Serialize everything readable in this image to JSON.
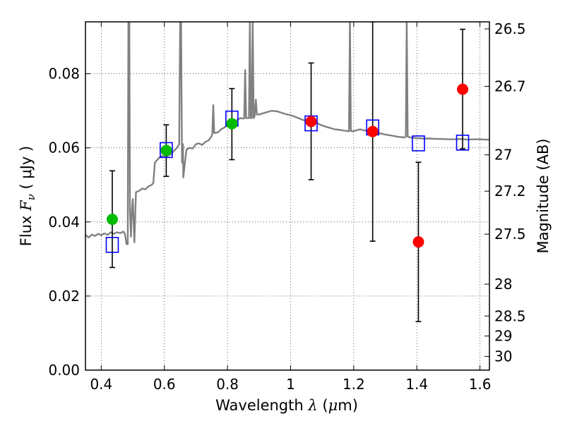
{
  "chart_data": {
    "type": "scatter",
    "title": "",
    "xlabel": {
      "prefix": "Wavelength",
      "symbol": "λ",
      "unit_open": "(",
      "unit_mu": "μ",
      "unit_rest": "m)"
    },
    "ylabel": {
      "prefix": "Flux",
      "symbol": "F",
      "symbol_sub": "ν",
      "unit": "(  μJy )"
    },
    "y2label": "Magnitude (AB)",
    "xlim": [
      0.35,
      1.63
    ],
    "ylim": [
      0.0,
      0.094
    ],
    "grid": true,
    "x_ticks": [
      {
        "value": 0.4,
        "label": "0.4"
      },
      {
        "value": 0.6,
        "label": "0.6"
      },
      {
        "value": 0.8,
        "label": "0.8"
      },
      {
        "value": 1.0,
        "label": "1"
      },
      {
        "value": 1.2,
        "label": "1.2"
      },
      {
        "value": 1.4,
        "label": "1.4"
      },
      {
        "value": 1.6,
        "label": "1.6"
      }
    ],
    "y_ticks": [
      {
        "value": 0.0,
        "label": "0.00"
      },
      {
        "value": 0.02,
        "label": "0.02"
      },
      {
        "value": 0.04,
        "label": "0.04"
      },
      {
        "value": 0.06,
        "label": "0.06"
      },
      {
        "value": 0.08,
        "label": "0.08"
      }
    ],
    "y2_ticks": [
      {
        "flux": 0.0921,
        "label": "26.5"
      },
      {
        "flux": 0.0766,
        "label": "26.7"
      },
      {
        "flux": 0.0581,
        "label": "27"
      },
      {
        "flux": 0.0483,
        "label": "27.2"
      },
      {
        "flux": 0.0367,
        "label": "27.5"
      },
      {
        "flux": 0.0232,
        "label": "28"
      },
      {
        "flux": 0.0146,
        "label": "28.5"
      },
      {
        "flux": 0.0092,
        "label": "29"
      },
      {
        "flux": 0.0037,
        "label": "30"
      }
    ],
    "series": [
      {
        "kind": "sed-model",
        "color": "#808080",
        "points": [
          [
            0.35,
            0.0365
          ],
          [
            0.36,
            0.0358
          ],
          [
            0.37,
            0.0366
          ],
          [
            0.38,
            0.0362
          ],
          [
            0.39,
            0.0368
          ],
          [
            0.4,
            0.0364
          ],
          [
            0.41,
            0.0369
          ],
          [
            0.42,
            0.0365
          ],
          [
            0.43,
            0.0372
          ],
          [
            0.44,
            0.0368
          ],
          [
            0.45,
            0.0372
          ],
          [
            0.46,
            0.037
          ],
          [
            0.47,
            0.0374
          ],
          [
            0.475,
            0.0368
          ],
          [
            0.48,
            0.034
          ],
          [
            0.484,
            0.034
          ],
          [
            0.486,
            0.094
          ],
          [
            0.489,
            0.094
          ],
          [
            0.491,
            0.043
          ],
          [
            0.494,
            0.036
          ],
          [
            0.497,
            0.043
          ],
          [
            0.5,
            0.0462
          ],
          [
            0.505,
            0.0345
          ],
          [
            0.51,
            0.048
          ],
          [
            0.52,
            0.0484
          ],
          [
            0.53,
            0.049
          ],
          [
            0.54,
            0.0488
          ],
          [
            0.55,
            0.0496
          ],
          [
            0.56,
            0.05
          ],
          [
            0.565,
            0.0505
          ],
          [
            0.57,
            0.056
          ],
          [
            0.58,
            0.057
          ],
          [
            0.59,
            0.0578
          ],
          [
            0.6,
            0.0576
          ],
          [
            0.61,
            0.0578
          ],
          [
            0.62,
            0.0582
          ],
          [
            0.63,
            0.0592
          ],
          [
            0.64,
            0.06
          ],
          [
            0.647,
            0.061
          ],
          [
            0.65,
            0.094
          ],
          [
            0.653,
            0.094
          ],
          [
            0.656,
            0.056
          ],
          [
            0.659,
            0.061
          ],
          [
            0.66,
            0.052
          ],
          [
            0.67,
            0.0595
          ],
          [
            0.68,
            0.06
          ],
          [
            0.69,
            0.0598
          ],
          [
            0.7,
            0.061
          ],
          [
            0.71,
            0.0612
          ],
          [
            0.72,
            0.0608
          ],
          [
            0.73,
            0.0616
          ],
          [
            0.74,
            0.062
          ],
          [
            0.75,
            0.0632
          ],
          [
            0.752,
            0.064
          ],
          [
            0.755,
            0.0715
          ],
          [
            0.758,
            0.064
          ],
          [
            0.76,
            0.064
          ],
          [
            0.77,
            0.0642
          ],
          [
            0.78,
            0.065
          ],
          [
            0.79,
            0.0655
          ],
          [
            0.8,
            0.066
          ],
          [
            0.81,
            0.0668
          ],
          [
            0.82,
            0.067
          ],
          [
            0.83,
            0.0675
          ],
          [
            0.84,
            0.068
          ],
          [
            0.85,
            0.0679
          ],
          [
            0.853,
            0.068
          ],
          [
            0.856,
            0.081
          ],
          [
            0.859,
            0.068
          ],
          [
            0.868,
            0.068
          ],
          [
            0.871,
            0.094
          ],
          [
            0.874,
            0.068
          ],
          [
            0.877,
            0.068
          ],
          [
            0.88,
            0.094
          ],
          [
            0.883,
            0.068
          ],
          [
            0.886,
            0.0685
          ],
          [
            0.89,
            0.073
          ],
          [
            0.893,
            0.069
          ],
          [
            0.9,
            0.069
          ],
          [
            0.92,
            0.0695
          ],
          [
            0.94,
            0.07
          ],
          [
            0.96,
            0.0698
          ],
          [
            0.98,
            0.0692
          ],
          [
            1.0,
            0.0688
          ],
          [
            1.02,
            0.0682
          ],
          [
            1.04,
            0.0675
          ],
          [
            1.06,
            0.0672
          ],
          [
            1.08,
            0.0668
          ],
          [
            1.1,
            0.066
          ],
          [
            1.12,
            0.0655
          ],
          [
            1.14,
            0.065
          ],
          [
            1.16,
            0.0648
          ],
          [
            1.18,
            0.0645
          ],
          [
            1.185,
            0.0645
          ],
          [
            1.188,
            0.094
          ],
          [
            1.191,
            0.0645
          ],
          [
            1.2,
            0.0645
          ],
          [
            1.22,
            0.065
          ],
          [
            1.24,
            0.0646
          ],
          [
            1.26,
            0.0643
          ],
          [
            1.28,
            0.064
          ],
          [
            1.3,
            0.0636
          ],
          [
            1.32,
            0.0633
          ],
          [
            1.34,
            0.063
          ],
          [
            1.36,
            0.0628
          ],
          [
            1.365,
            0.063
          ],
          [
            1.368,
            0.094
          ],
          [
            1.371,
            0.063
          ],
          [
            1.38,
            0.0628
          ],
          [
            1.4,
            0.0626
          ],
          [
            1.42,
            0.0625
          ],
          [
            1.44,
            0.0625
          ],
          [
            1.46,
            0.0624
          ],
          [
            1.48,
            0.0624
          ],
          [
            1.5,
            0.0623
          ],
          [
            1.52,
            0.0623
          ],
          [
            1.54,
            0.0624
          ],
          [
            1.56,
            0.0622
          ],
          [
            1.58,
            0.0623
          ],
          [
            1.6,
            0.0623
          ],
          [
            1.62,
            0.0622
          ],
          [
            1.63,
            0.0622
          ]
        ]
      },
      {
        "kind": "model-photometry",
        "marker": "open-square",
        "color": "#0000ff",
        "points": [
          {
            "x": 0.435,
            "y": 0.0338
          },
          {
            "x": 0.606,
            "y": 0.0594
          },
          {
            "x": 0.814,
            "y": 0.0679
          },
          {
            "x": 1.065,
            "y": 0.0666
          },
          {
            "x": 1.26,
            "y": 0.0655
          },
          {
            "x": 1.405,
            "y": 0.0612
          },
          {
            "x": 1.545,
            "y": 0.0614
          }
        ]
      },
      {
        "kind": "observed",
        "marker": "filled-circle",
        "color": "#00bb00",
        "points": [
          {
            "x": 0.435,
            "y": 0.0407,
            "err_lo": 0.0277,
            "err_hi": 0.0538
          },
          {
            "x": 0.606,
            "y": 0.0593,
            "err_lo": 0.0523,
            "err_hi": 0.0662
          },
          {
            "x": 0.814,
            "y": 0.0665,
            "err_lo": 0.0568,
            "err_hi": 0.076
          }
        ]
      },
      {
        "kind": "observed",
        "marker": "filled-circle",
        "color": "#ff0000",
        "points": [
          {
            "x": 1.065,
            "y": 0.0671,
            "err_lo": 0.0514,
            "err_hi": 0.0829
          },
          {
            "x": 1.26,
            "y": 0.0644,
            "err_lo": 0.0348,
            "err_hi": 0.094
          },
          {
            "x": 1.405,
            "y": 0.0346,
            "err_lo": 0.0131,
            "err_hi": 0.0561
          },
          {
            "x": 1.545,
            "y": 0.0758,
            "err_lo": 0.0597,
            "err_hi": 0.092
          }
        ]
      }
    ]
  }
}
